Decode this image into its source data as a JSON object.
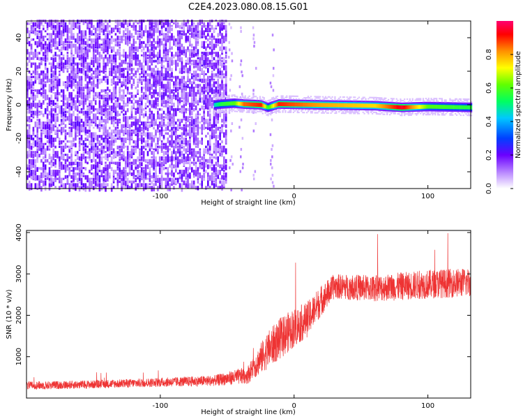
{
  "title": "C2E4.2023.080.08.15.G01",
  "chart_data": [
    {
      "type": "heatmap",
      "xlabel": "Height of straight line (km)",
      "ylabel": "Frequency (Hz)",
      "xlim": [
        -200,
        132
      ],
      "ylim": [
        -50,
        50
      ],
      "xticks": [
        -100,
        0,
        100
      ],
      "yticks": [
        -40,
        -20,
        0,
        20,
        40
      ],
      "colorbar": {
        "label": "Normalized spectral amplitude",
        "ticks": [
          "0.0",
          "0.2",
          "0.4",
          "0.6",
          "0.8"
        ],
        "range": [
          0,
          1
        ]
      },
      "noise_region_x": [
        -200,
        -50
      ],
      "sparse_columns_x": [
        -48,
        -40,
        -30,
        -17
      ],
      "carrier_line": [
        {
          "x": -60,
          "freq": 0.0,
          "amp": 0.45
        },
        {
          "x": -55,
          "freq": 0.5,
          "amp": 0.55
        },
        {
          "x": -45,
          "freq": 1.0,
          "amp": 0.6
        },
        {
          "x": -38,
          "freq": 0.5,
          "amp": 0.85
        },
        {
          "x": -25,
          "freq": 0.0,
          "amp": 0.9
        },
        {
          "x": -20,
          "freq": -1.5,
          "amp": 0.55
        },
        {
          "x": -12,
          "freq": 0.5,
          "amp": 0.9
        },
        {
          "x": 20,
          "freq": 0.0,
          "amp": 0.8
        },
        {
          "x": 60,
          "freq": -0.5,
          "amp": 0.75
        },
        {
          "x": 80,
          "freq": -1.5,
          "amp": 0.95
        },
        {
          "x": 100,
          "freq": -1.0,
          "amp": 0.6
        },
        {
          "x": 132,
          "freq": -1.5,
          "amp": 0.55
        }
      ]
    },
    {
      "type": "line",
      "xlabel": "Height of straight line (km)",
      "ylabel": "SNR (10 * v/v)",
      "xlim": [
        -200,
        132
      ],
      "ylim": [
        0,
        4050
      ],
      "xticks": [
        -100,
        0,
        100
      ],
      "yticks": [
        1000,
        2000,
        3000,
        4000
      ],
      "series_color": "#ee3333",
      "trend": {
        "x": [
          -200,
          -150,
          -100,
          -60,
          -35,
          -20,
          -10,
          0,
          10,
          20,
          30,
          60,
          100,
          132
        ],
        "mean": [
          300,
          330,
          380,
          420,
          550,
          1150,
          1450,
          1700,
          1900,
          2350,
          2700,
          2650,
          2750,
          2800
        ],
        "spread": [
          200,
          200,
          220,
          260,
          420,
          900,
          1000,
          950,
          850,
          750,
          600,
          650,
          700,
          700
        ]
      }
    }
  ]
}
